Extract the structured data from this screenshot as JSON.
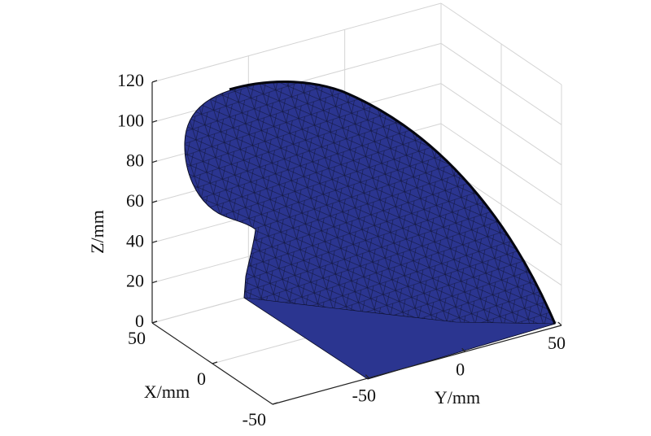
{
  "chart_data": {
    "type": "surface3d",
    "color": "#2b3590",
    "xlabel": "X/mm",
    "ylabel": "Y/mm",
    "zlabel": "Z/mm",
    "xlim": [
      -50,
      50
    ],
    "ylim": [
      -100,
      50
    ],
    "zlim": [
      0,
      120
    ],
    "xticks": [
      -50,
      0,
      50
    ],
    "yticks": [
      -50,
      0,
      50
    ],
    "zticks": [
      0,
      20,
      40,
      60,
      80,
      100,
      120
    ],
    "grid": true
  }
}
